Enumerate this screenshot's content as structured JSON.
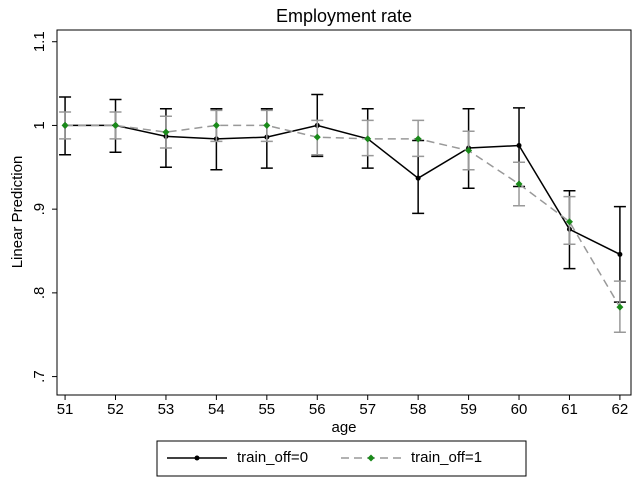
{
  "chart_data": {
    "type": "line",
    "title": "Employment rate",
    "x_label": "age",
    "y_label": "Linear Prediction",
    "x": [
      51,
      52,
      53,
      54,
      55,
      56,
      57,
      58,
      59,
      60,
      61,
      62
    ],
    "series": [
      {
        "name": "train_off=0",
        "color": "#000000",
        "dash": false,
        "marker": "circle",
        "values": [
          1.0,
          1.0,
          0.987,
          0.984,
          0.986,
          1.0,
          0.984,
          0.937,
          0.973,
          0.976,
          0.876,
          0.846
        ],
        "lower": [
          0.965,
          0.968,
          0.95,
          0.947,
          0.949,
          0.963,
          0.949,
          0.895,
          0.925,
          0.927,
          0.829,
          0.789
        ],
        "upper": [
          1.034,
          1.031,
          1.02,
          1.02,
          1.02,
          1.037,
          1.02,
          0.982,
          1.02,
          1.021,
          0.922,
          0.903
        ]
      },
      {
        "name": "train_off=1",
        "color": "#1a8a1a",
        "line_color": "#999999",
        "dash": true,
        "marker": "diamond",
        "values": [
          1.0,
          1.0,
          0.992,
          1.0,
          1.0,
          0.986,
          0.984,
          0.984,
          0.97,
          0.93,
          0.885,
          0.783
        ],
        "lower": [
          0.984,
          0.984,
          0.973,
          0.981,
          0.981,
          0.965,
          0.964,
          0.963,
          0.947,
          0.904,
          0.858,
          0.753
        ],
        "upper": [
          1.016,
          1.016,
          1.011,
          1.018,
          1.018,
          1.006,
          1.006,
          1.006,
          0.993,
          0.956,
          0.915,
          0.814
        ]
      }
    ],
    "xlim": [
      50.84,
      62.22
    ],
    "xticks": [
      51,
      52,
      53,
      54,
      55,
      56,
      57,
      58,
      59,
      60,
      61,
      62
    ],
    "ylim": [
      0.678,
      1.114
    ],
    "yticks": [
      {
        "value": 0.7,
        "label": ".7"
      },
      {
        "value": 0.8,
        "label": ".8"
      },
      {
        "value": 0.9,
        "label": ".9"
      },
      1,
      1.1
    ],
    "legend": "bottom"
  }
}
